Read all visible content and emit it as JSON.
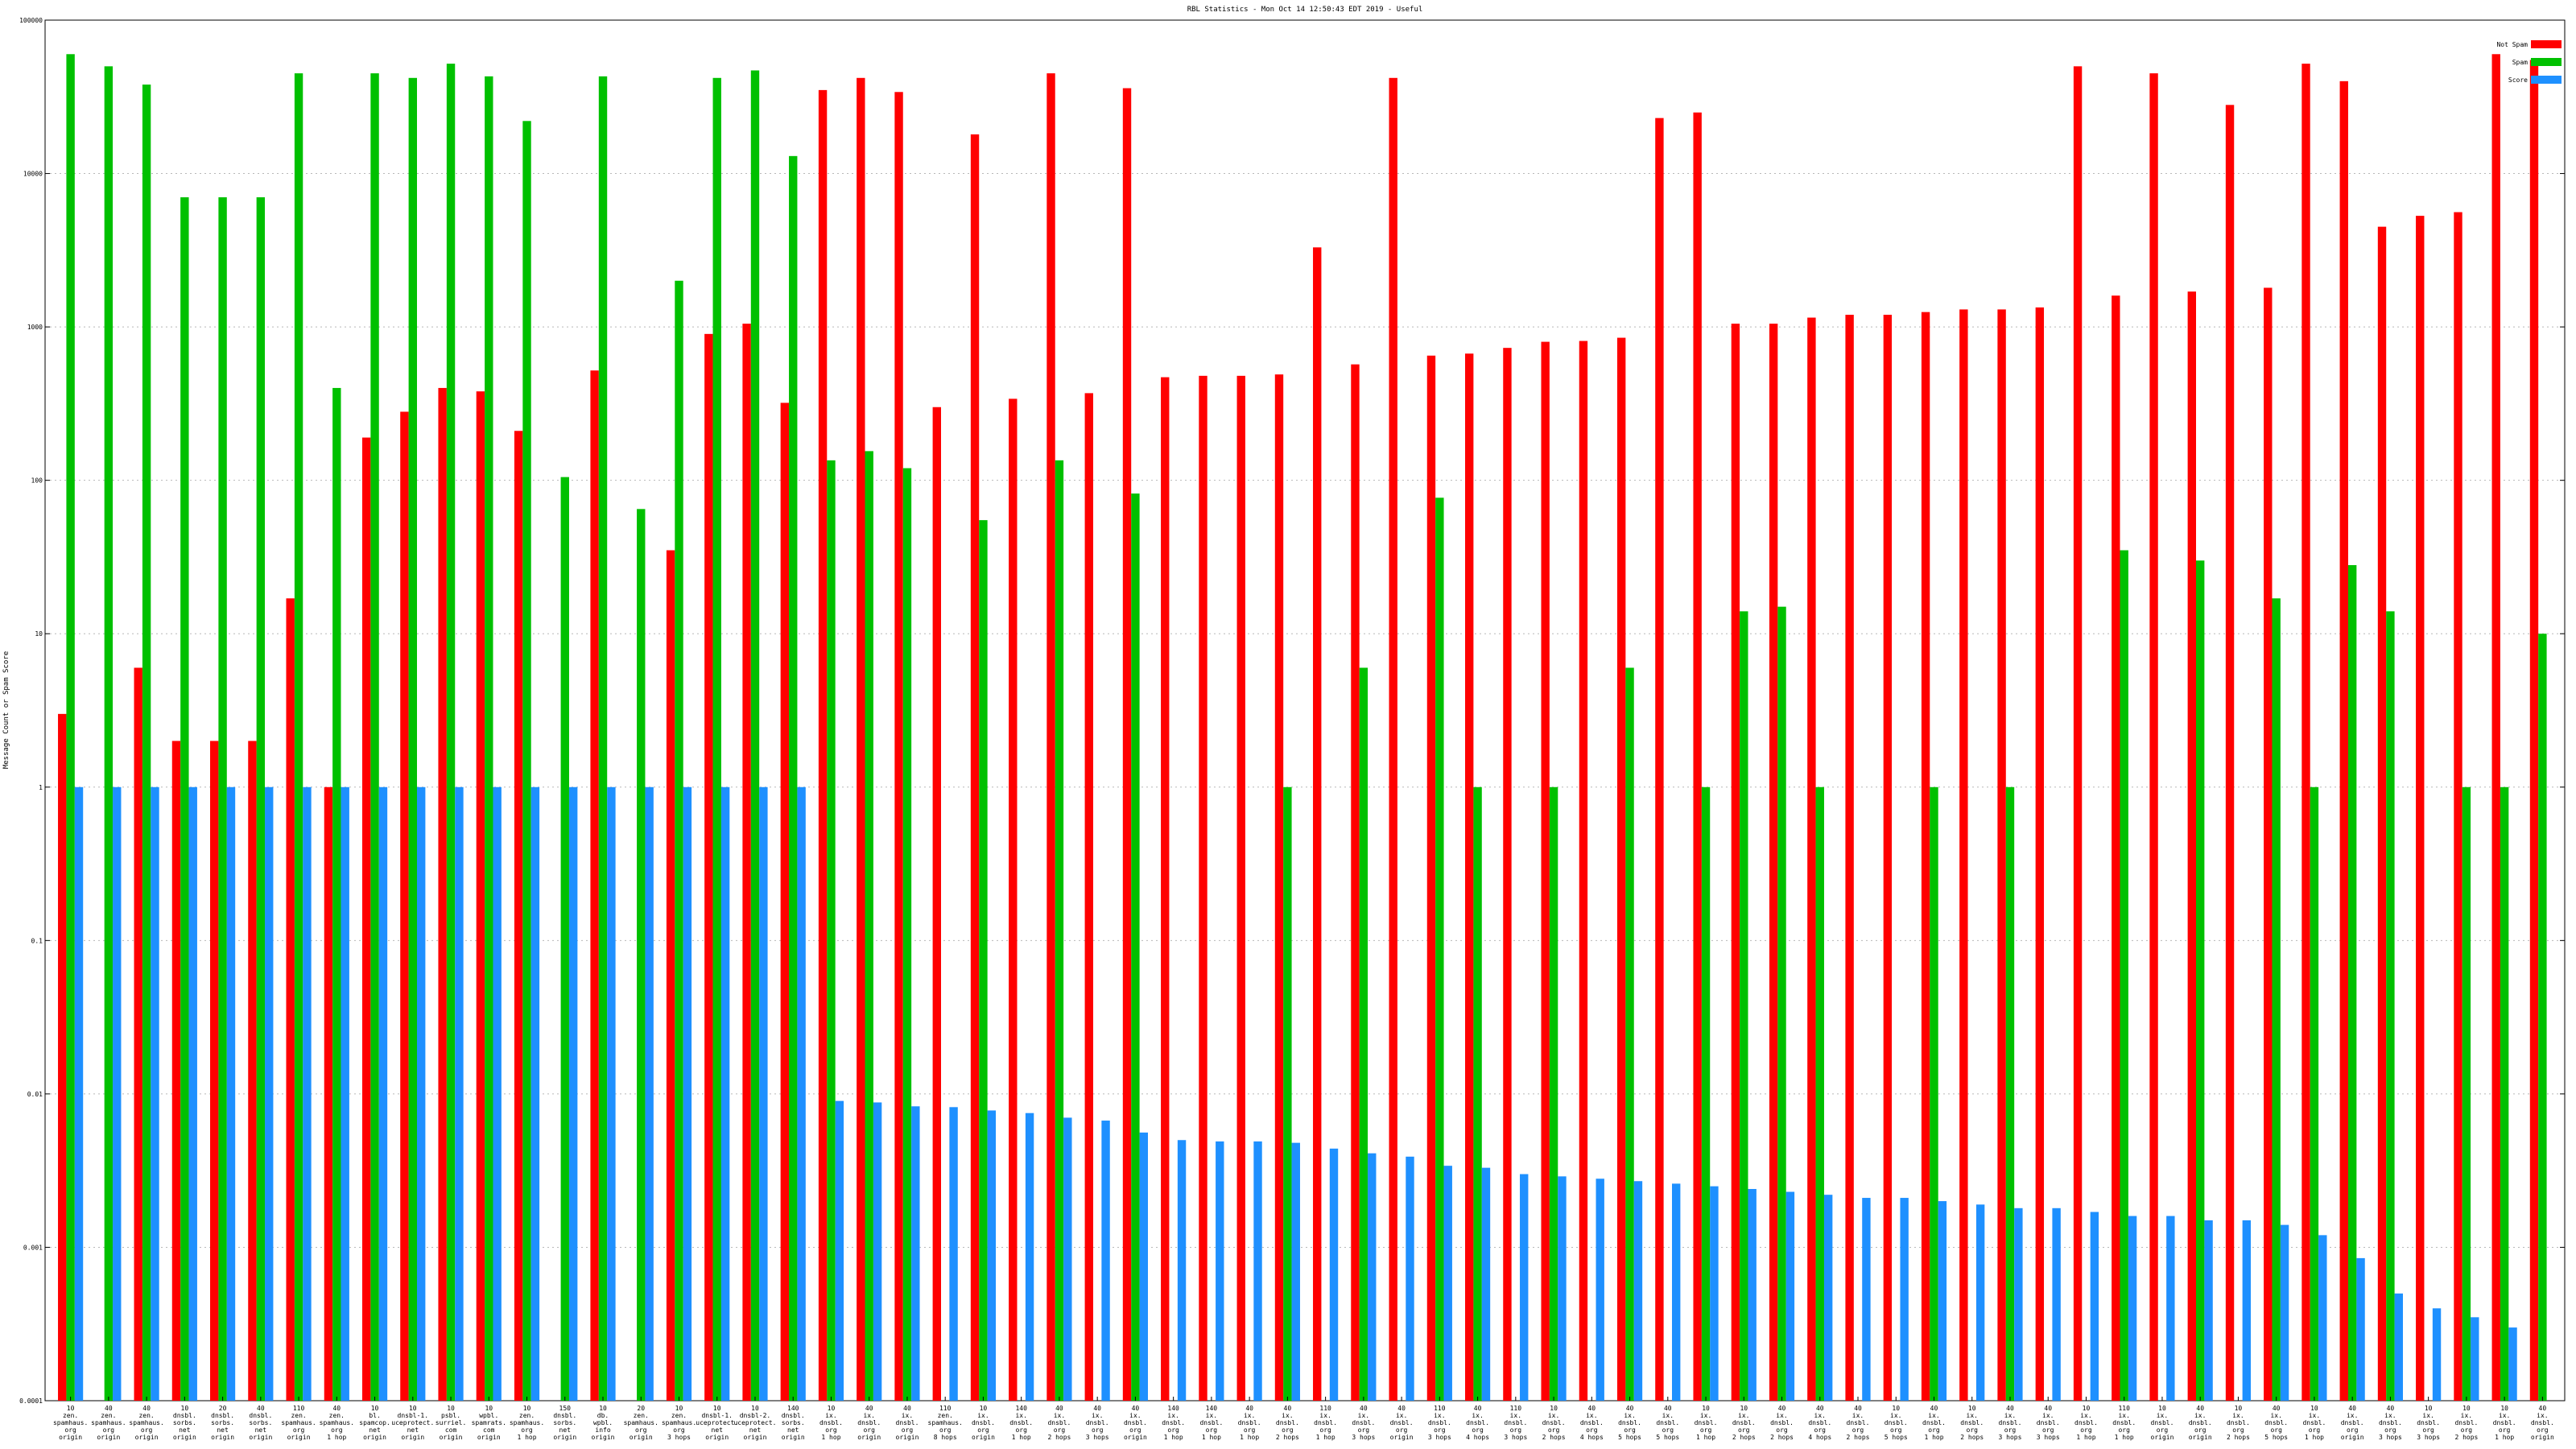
{
  "chart_data": {
    "type": "bar",
    "title": "RBL Statistics - Mon Oct 14 12:50:43 EDT 2019 - Useful",
    "xlabel": "",
    "ylabel": "Message Count or Spam Score",
    "yscale": "log",
    "ylim": [
      0.0001,
      100000
    ],
    "yticks": [
      "0.0001",
      "0.001",
      "0.01",
      "0.1",
      "1",
      "10",
      "100",
      "1000",
      "10000",
      "100000"
    ],
    "grid": true,
    "legend_position": "top-right",
    "colors": {
      "Not Spam": "#ff0000",
      "Spam": "#00c000",
      "Score": "#1e90ff"
    },
    "categories": [
      [
        "10",
        "zen.",
        "spamhaus.",
        "org",
        "origin"
      ],
      [
        "40",
        "zen.",
        "spamhaus.",
        "org",
        "origin"
      ],
      [
        "40",
        "zen.",
        "spamhaus.",
        "org",
        "origin"
      ],
      [
        "10",
        "dnsbl.",
        "sorbs.",
        "net",
        "origin"
      ],
      [
        "20",
        "dnsbl.",
        "sorbs.",
        "net",
        "origin"
      ],
      [
        "40",
        "dnsbl.",
        "sorbs.",
        "net",
        "origin"
      ],
      [
        "110",
        "zen.",
        "spamhaus.",
        "org",
        "origin"
      ],
      [
        "40",
        "zen.",
        "spamhaus.",
        "org",
        "1 hop"
      ],
      [
        "10",
        "bl.",
        "spamcop.",
        "net",
        "origin"
      ],
      [
        "10",
        "dnsbl-1.",
        "uceprotect.",
        "net",
        "origin"
      ],
      [
        "10",
        "psbl.",
        "surriel.",
        "com",
        "origin"
      ],
      [
        "10",
        "wpbl.",
        "spamrats.",
        "com",
        "origin"
      ],
      [
        "10",
        "zen.",
        "spamhaus.",
        "org",
        "1 hop"
      ],
      [
        "150",
        "dnsbl.",
        "sorbs.",
        "net",
        "origin"
      ],
      [
        "10",
        "db.",
        "wpbl.",
        "info",
        "origin"
      ],
      [
        "20",
        "zen.",
        "spamhaus.",
        "org",
        "origin"
      ],
      [
        "10",
        "zen.",
        "spamhaus.",
        "org",
        "3 hops"
      ],
      [
        "10",
        "dnsbl-1.",
        "uceprotect.",
        "net",
        "origin"
      ],
      [
        "10",
        "dnsbl-2.",
        "uceprotect.",
        "net",
        "origin"
      ],
      [
        "140",
        "dnsbl.",
        "sorbs.",
        "net",
        "origin"
      ],
      [
        "10",
        "ix.",
        "dnsbl.",
        "org",
        "1 hop"
      ],
      [
        "40",
        "ix.",
        "dnsbl.",
        "org",
        "origin"
      ],
      [
        "40",
        "ix.",
        "dnsbl.",
        "org",
        "origin"
      ],
      [
        "110",
        "zen.",
        "spamhaus.",
        "org",
        "8 hops"
      ],
      [
        "10",
        "ix.",
        "dnsbl.",
        "org",
        "origin"
      ],
      [
        "140",
        "ix.",
        "dnsbl.",
        "org",
        "1 hop"
      ],
      [
        "40",
        "ix.",
        "dnsbl.",
        "org",
        "2 hops"
      ],
      [
        "40",
        "ix.",
        "dnsbl.",
        "org",
        "3 hops"
      ],
      [
        "40",
        "ix.",
        "dnsbl.",
        "org",
        "origin"
      ],
      [
        "140",
        "ix.",
        "dnsbl.",
        "org",
        "1 hop"
      ],
      [
        "140",
        "ix.",
        "dnsbl.",
        "org",
        "1 hop"
      ],
      [
        "40",
        "ix.",
        "dnsbl.",
        "org",
        "1 hop"
      ],
      [
        "40",
        "ix.",
        "dnsbl.",
        "org",
        "2 hops"
      ],
      [
        "110",
        "ix.",
        "dnsbl.",
        "org",
        "1 hop"
      ],
      [
        "40",
        "ix.",
        "dnsbl.",
        "org",
        "3 hops"
      ],
      [
        "40",
        "ix.",
        "dnsbl.",
        "org",
        "origin"
      ],
      [
        "110",
        "ix.",
        "dnsbl.",
        "org",
        "3 hops"
      ],
      [
        "40",
        "ix.",
        "dnsbl.",
        "org",
        "4 hops"
      ],
      [
        "110",
        "ix.",
        "dnsbl.",
        "org",
        "3 hops"
      ],
      [
        "10",
        "ix.",
        "dnsbl.",
        "org",
        "2 hops"
      ],
      [
        "40",
        "ix.",
        "dnsbl.",
        "org",
        "4 hops"
      ],
      [
        "40",
        "ix.",
        "dnsbl.",
        "org",
        "5 hops"
      ],
      [
        "40",
        "ix.",
        "dnsbl.",
        "org",
        "5 hops"
      ],
      [
        "10",
        "ix.",
        "dnsbl.",
        "org",
        "1 hop"
      ],
      [
        "10",
        "ix.",
        "dnsbl.",
        "org",
        "2 hops"
      ],
      [
        "40",
        "ix.",
        "dnsbl.",
        "org",
        "2 hops"
      ],
      [
        "40",
        "ix.",
        "dnsbl.",
        "org",
        "4 hops"
      ],
      [
        "40",
        "ix.",
        "dnsbl.",
        "org",
        "2 hops"
      ],
      [
        "10",
        "ix.",
        "dnsbl.",
        "org",
        "5 hops"
      ],
      [
        "40",
        "ix.",
        "dnsbl.",
        "org",
        "1 hop"
      ],
      [
        "10",
        "ix.",
        "dnsbl.",
        "org",
        "2 hops"
      ],
      [
        "40",
        "ix.",
        "dnsbl.",
        "org",
        "3 hops"
      ],
      [
        "40",
        "ix.",
        "dnsbl.",
        "org",
        "3 hops"
      ],
      [
        "10",
        "ix.",
        "dnsbl.",
        "org",
        "1 hop"
      ],
      [
        "110",
        "ix.",
        "dnsbl.",
        "org",
        "1 hop"
      ],
      [
        "10",
        "ix.",
        "dnsbl.",
        "org",
        "origin"
      ],
      [
        "40",
        "ix.",
        "dnsbl.",
        "org",
        "origin"
      ],
      [
        "10",
        "ix.",
        "dnsbl.",
        "org",
        "2 hops"
      ],
      [
        "40",
        "ix.",
        "dnsbl.",
        "org",
        "5 hops"
      ],
      [
        "10",
        "ix.",
        "dnsbl.",
        "org",
        "1 hop"
      ],
      [
        "40",
        "ix.",
        "dnsbl.",
        "org",
        "origin"
      ],
      [
        "40",
        "ix.",
        "dnsbl.",
        "org",
        "3 hops"
      ],
      [
        "10",
        "ix.",
        "dnsbl.",
        "org",
        "3 hops"
      ],
      [
        "10",
        "ix.",
        "dnsbl.",
        "org",
        "2 hops"
      ],
      [
        "10",
        "ix.",
        "dnsbl.",
        "org",
        "1 hop"
      ],
      [
        "40",
        "ix.",
        "dnsbl.",
        "org",
        "origin"
      ]
    ],
    "series": [
      {
        "name": "Not Spam",
        "values": [
          3,
          null,
          6,
          2,
          2,
          2,
          17,
          1,
          190,
          280,
          400,
          380,
          210,
          null,
          520,
          null,
          35,
          900,
          1050,
          320,
          35000,
          42000,
          34000,
          300,
          18000,
          340,
          45000,
          370,
          36000,
          470,
          480,
          480,
          490,
          3300,
          570,
          42000,
          650,
          670,
          730,
          800,
          810,
          850,
          23000,
          25000,
          1050,
          1050,
          1150,
          1200,
          1200,
          1250,
          1300,
          1300,
          1340,
          50000,
          1600,
          45000,
          1700,
          28000,
          1800,
          52000,
          40000,
          4500,
          5300,
          5600,
          60000,
          55000
        ]
      },
      {
        "name": "Spam",
        "values": [
          60000,
          50000,
          38000,
          7000,
          7000,
          7000,
          45000,
          400,
          45000,
          42000,
          52000,
          43000,
          22000,
          105,
          43000,
          65,
          2000,
          42000,
          47000,
          13000,
          135,
          155,
          120,
          null,
          55,
          null,
          135,
          null,
          82,
          null,
          null,
          null,
          1,
          null,
          6,
          null,
          77,
          1,
          null,
          1,
          null,
          6,
          null,
          1,
          14,
          15,
          1,
          null,
          null,
          1,
          null,
          1,
          null,
          null,
          35,
          null,
          30,
          null,
          17,
          1,
          28,
          14,
          null,
          1,
          1,
          10
        ]
      },
      {
        "name": "Score",
        "values": [
          1,
          1,
          1,
          1,
          1,
          1,
          1,
          1,
          1,
          1,
          1,
          1,
          1,
          1,
          1,
          1,
          1,
          1,
          1,
          1,
          0.009,
          0.0088,
          0.0083,
          0.0082,
          0.0078,
          0.0075,
          0.007,
          0.0067,
          0.0056,
          0.005,
          0.0049,
          0.0049,
          0.0048,
          0.0044,
          0.0041,
          0.0039,
          0.0034,
          0.0033,
          0.003,
          0.0029,
          0.0028,
          0.0027,
          0.0026,
          0.0025,
          0.0024,
          0.0023,
          0.0022,
          0.0021,
          0.0021,
          0.002,
          0.0019,
          0.0018,
          0.0018,
          0.0017,
          0.0016,
          0.0016,
          0.0015,
          0.0015,
          0.0014,
          0.0012,
          0.00085,
          0.0005,
          0.0004,
          0.00035,
          0.0003,
          null
        ]
      }
    ]
  }
}
